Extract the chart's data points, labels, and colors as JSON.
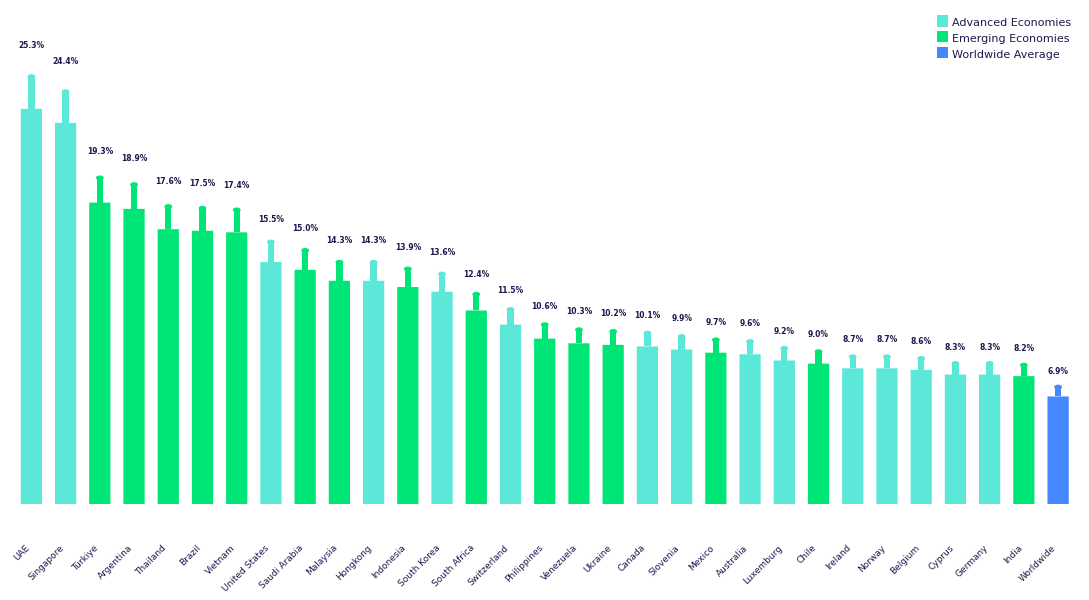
{
  "countries": [
    "UAE",
    "Singapore",
    "Türkiye",
    "Argentina",
    "Thailand",
    "Brazil",
    "Vietnam",
    "United States",
    "Saudi Arabia",
    "Malaysia",
    "Hongkong",
    "Indonesia",
    "South Korea",
    "South Africa",
    "Switzerland",
    "Philippines",
    "Venezuela",
    "Ukraine",
    "Canada",
    "Slovenia",
    "Mexico",
    "Australia",
    "Luxemburg",
    "Chile",
    "Ireland",
    "Norway",
    "Belgium",
    "Cyprus",
    "Germany",
    "India",
    "Worldwide"
  ],
  "values": [
    25.3,
    24.4,
    19.3,
    18.9,
    17.6,
    17.5,
    17.4,
    15.5,
    15.0,
    14.3,
    14.3,
    13.9,
    13.6,
    12.4,
    11.5,
    10.6,
    10.3,
    10.2,
    10.1,
    9.9,
    9.7,
    9.6,
    9.2,
    9.0,
    8.7,
    8.7,
    8.6,
    8.3,
    8.3,
    8.2,
    6.9
  ],
  "categories": [
    "advanced",
    "advanced",
    "emerging",
    "emerging",
    "emerging",
    "emerging",
    "emerging",
    "advanced",
    "emerging",
    "emerging",
    "advanced",
    "emerging",
    "advanced",
    "emerging",
    "advanced",
    "emerging",
    "emerging",
    "emerging",
    "advanced",
    "advanced",
    "emerging",
    "advanced",
    "advanced",
    "emerging",
    "advanced",
    "advanced",
    "advanced",
    "advanced",
    "advanced",
    "emerging",
    "worldwide"
  ],
  "advanced_color": "#5ce8d8",
  "emerging_color": "#00e676",
  "worldwide_color": "#4488ff",
  "bar_body_alpha": 1.0,
  "background_color": "#ffffff",
  "title_color": "#1a1a4e",
  "label_color": "#1a1a4e",
  "legend_labels": [
    "Advanced Economies",
    "Emerging Economies",
    "Worldwide Average"
  ],
  "legend_colors": [
    "#5ce8d8",
    "#00e676",
    "#4488ff"
  ],
  "ylim": [
    0,
    28
  ]
}
